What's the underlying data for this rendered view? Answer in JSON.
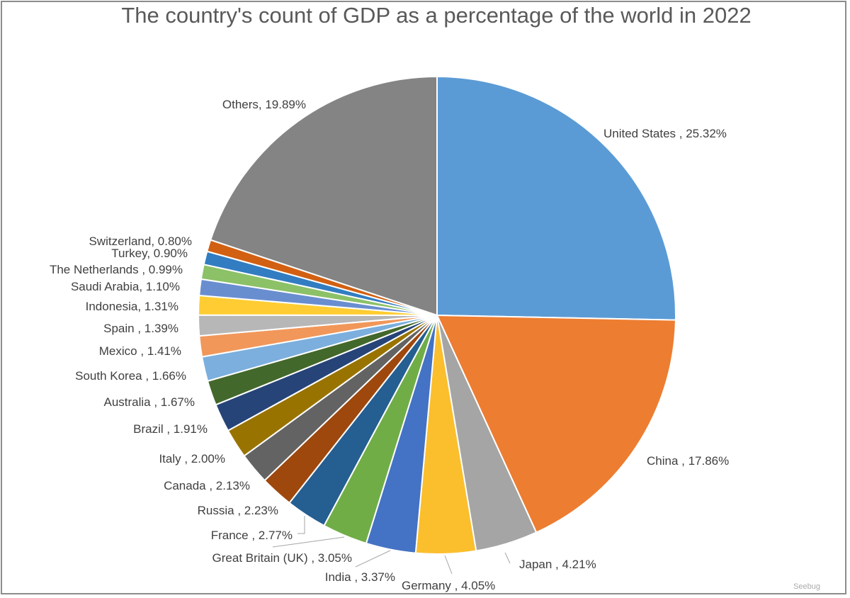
{
  "chart_data": {
    "type": "pie",
    "title": "The country's count of GDP as a percentage of the world in 2022",
    "start_angle": "top, clockwise",
    "slices": [
      {
        "label": "United States ",
        "value": 25.32,
        "text": "United States , 25.32%",
        "color": "#5B9BD5"
      },
      {
        "label": "China ",
        "value": 17.86,
        "text": "China , 17.86%",
        "color": "#ED7D31"
      },
      {
        "label": "Japan ",
        "value": 4.21,
        "text": "Japan , 4.21%",
        "color": "#A5A5A5"
      },
      {
        "label": "Germany ",
        "value": 4.05,
        "text": "Germany , 4.05%",
        "color": "#FBBE2D"
      },
      {
        "label": "India ",
        "value": 3.37,
        "text": "India , 3.37%",
        "color": "#4472C4"
      },
      {
        "label": "Great Britain (UK) ",
        "value": 3.05,
        "text": "Great Britain (UK) , 3.05%",
        "color": "#70AD47"
      },
      {
        "label": "France ",
        "value": 2.77,
        "text": "France , 2.77%",
        "color": "#255E91"
      },
      {
        "label": "Russia ",
        "value": 2.23,
        "text": "Russia , 2.23%",
        "color": "#9E480E"
      },
      {
        "label": "Canada ",
        "value": 2.13,
        "text": "Canada , 2.13%",
        "color": "#636363"
      },
      {
        "label": "Italy ",
        "value": 2.0,
        "text": "Italy , 2.00%",
        "color": "#997300"
      },
      {
        "label": "Brazil ",
        "value": 1.91,
        "text": "Brazil , 1.91%",
        "color": "#264478"
      },
      {
        "label": "Australia ",
        "value": 1.67,
        "text": "Australia , 1.67%",
        "color": "#43682B"
      },
      {
        "label": "South Korea ",
        "value": 1.66,
        "text": "South Korea , 1.66%",
        "color": "#7CAFDD"
      },
      {
        "label": "Mexico ",
        "value": 1.41,
        "text": "Mexico , 1.41%",
        "color": "#F1975A"
      },
      {
        "label": "Spain ",
        "value": 1.39,
        "text": "Spain , 1.39%",
        "color": "#B7B7B7"
      },
      {
        "label": "Indonesia",
        "value": 1.31,
        "text": "Indonesia, 1.31%",
        "color": "#FFCD33"
      },
      {
        "label": "Saudi Arabia",
        "value": 1.1,
        "text": "Saudi Arabia, 1.10%",
        "color": "#698ED0"
      },
      {
        "label": "The Netherlands ",
        "value": 0.99,
        "text": "The Netherlands , 0.99%",
        "color": "#8CC168"
      },
      {
        "label": "Turkey",
        "value": 0.9,
        "text": "Turkey, 0.90%",
        "color": "#327DC2"
      },
      {
        "label": "Switzerland",
        "value": 0.8,
        "text": "Switzerland, 0.80%",
        "color": "#D26012"
      },
      {
        "label": "Others",
        "value": 19.89,
        "text": "Others, 19.89%",
        "color": "#848484"
      }
    ]
  },
  "watermark": "Seebug"
}
